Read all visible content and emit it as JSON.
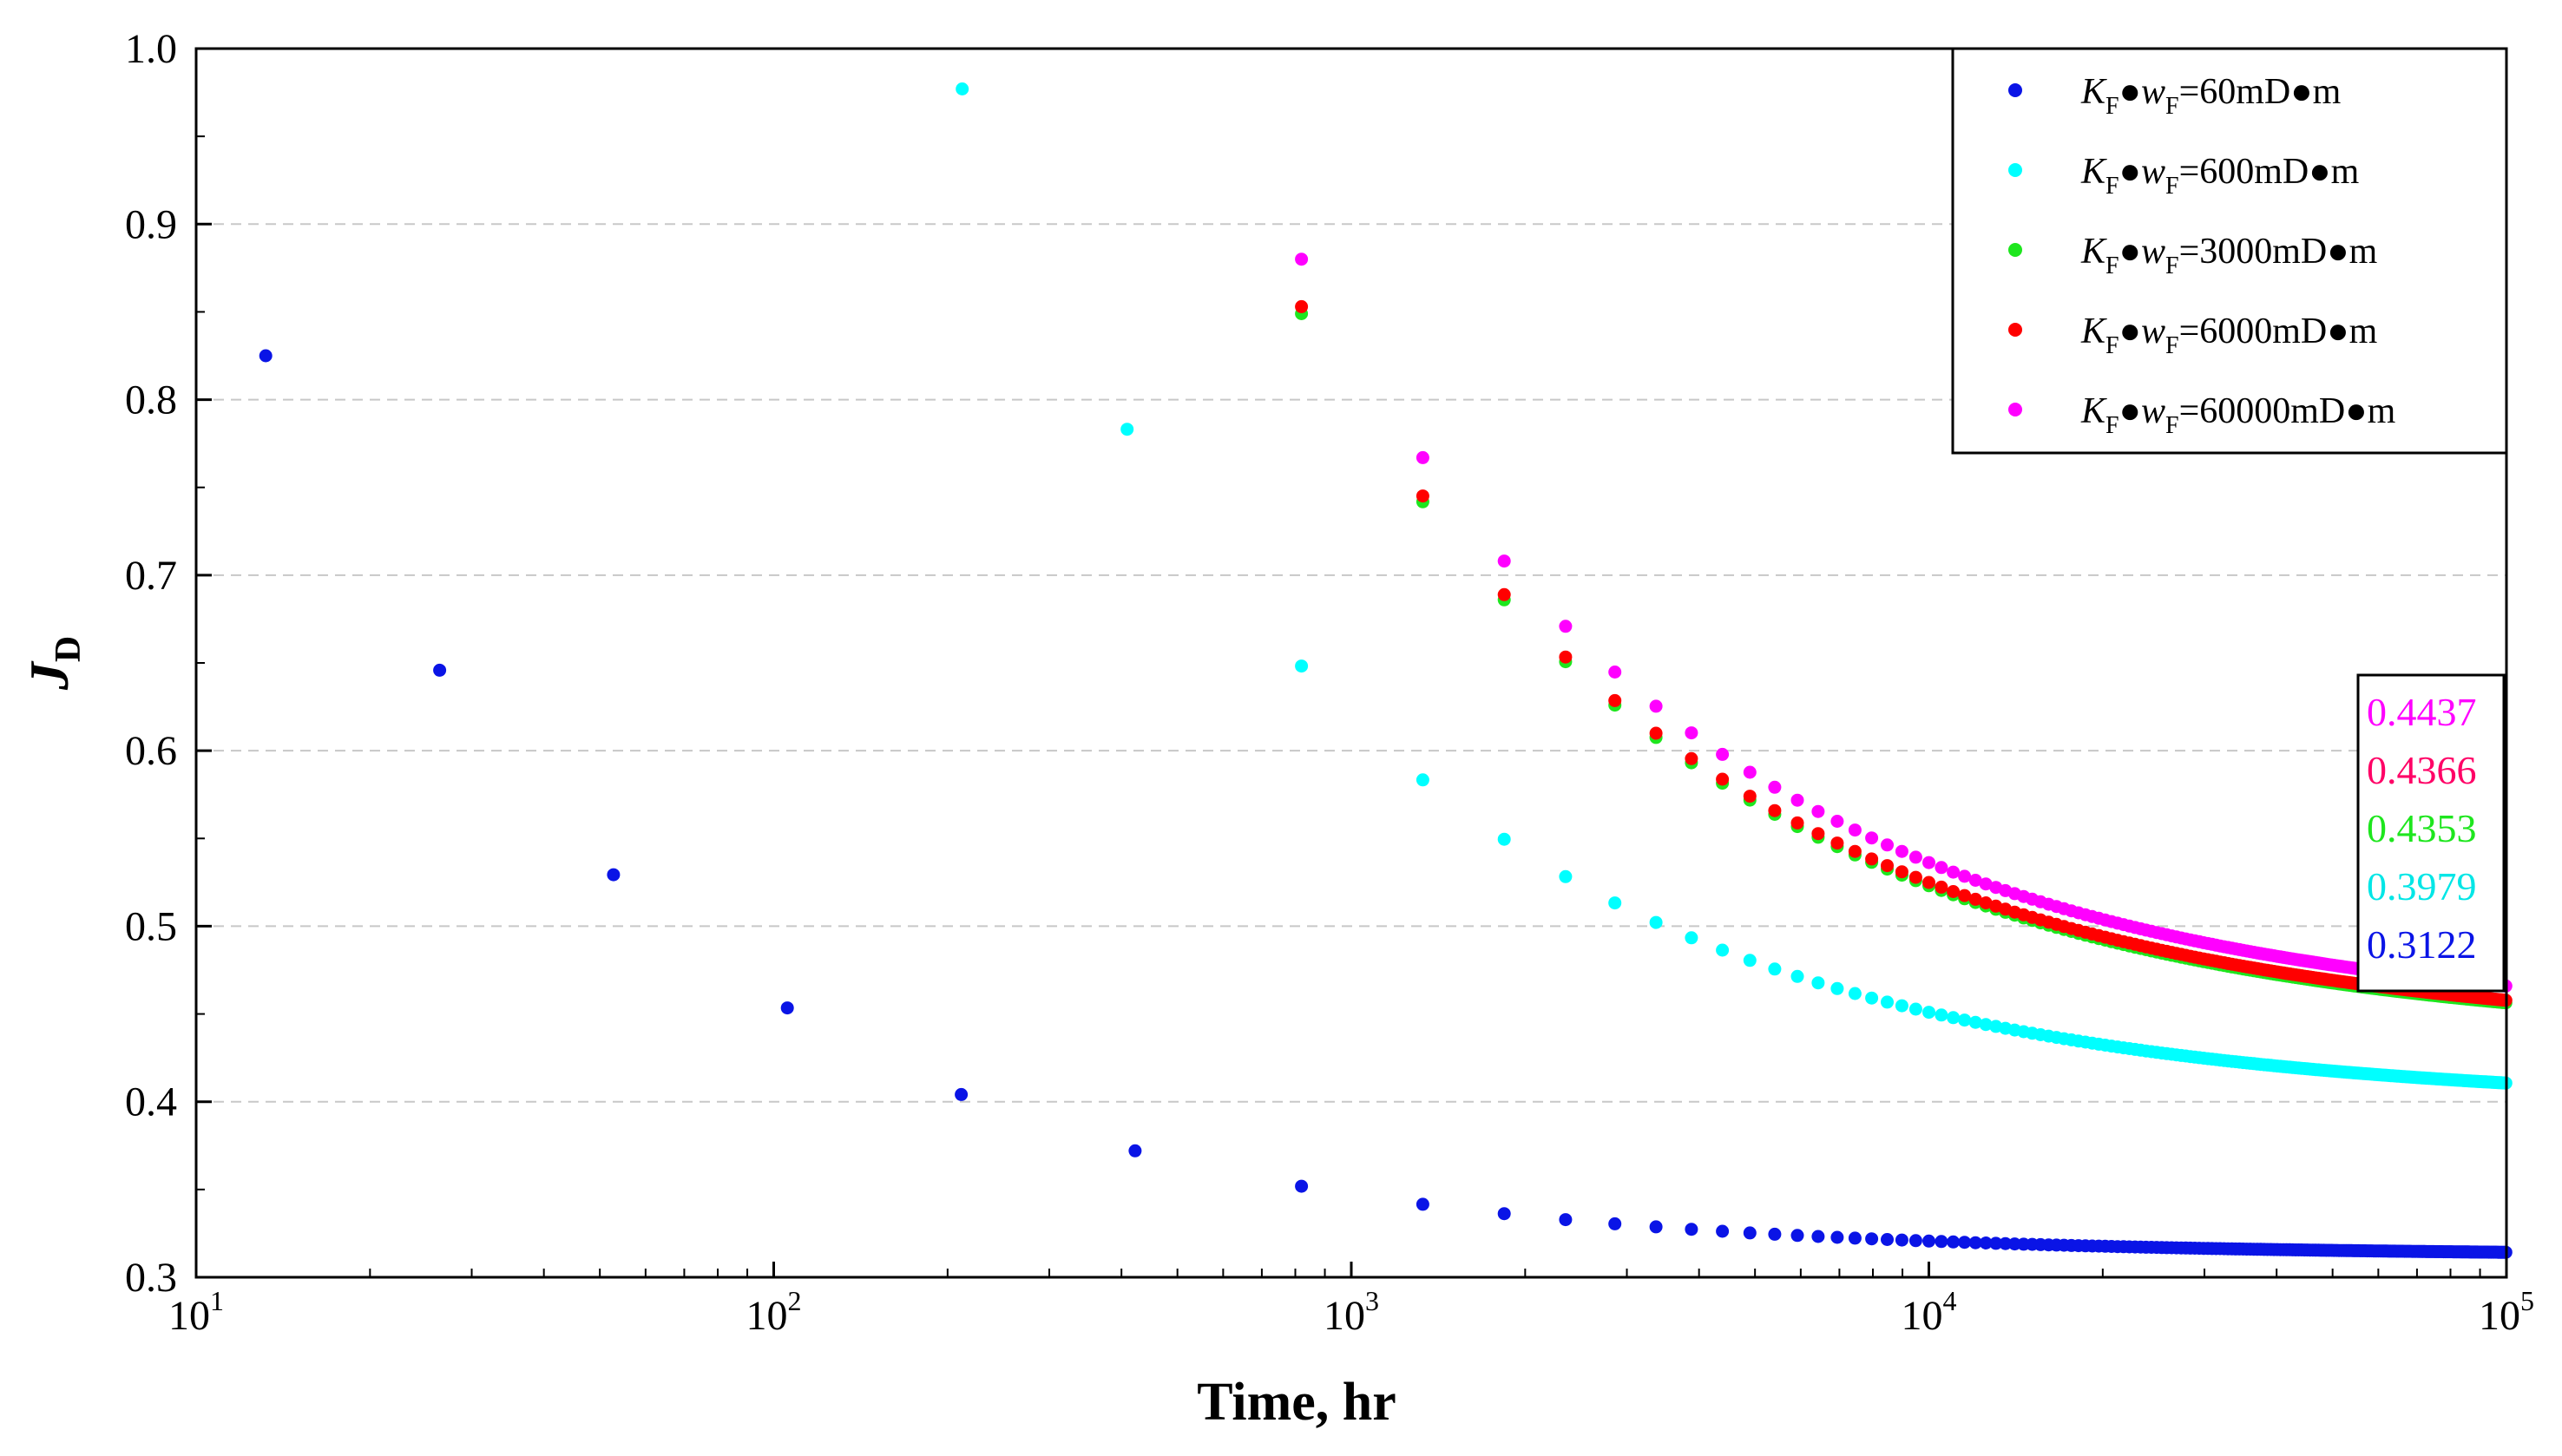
{
  "chart_data": {
    "type": "scatter",
    "title": "",
    "xlabel": "Time,  hr",
    "ylabel_main": "J",
    "ylabel_sub": "D",
    "xscale": "log",
    "xlim": [
      10,
      100000
    ],
    "ylim": [
      0.3,
      1.0
    ],
    "grid": "horizontal-dashed",
    "legend_position": "top-right",
    "xticks": [
      {
        "base": "10",
        "exp": "1"
      },
      {
        "base": "10",
        "exp": "2"
      },
      {
        "base": "10",
        "exp": "3"
      },
      {
        "base": "10",
        "exp": "4"
      },
      {
        "base": "10",
        "exp": "5"
      }
    ],
    "yticks": [
      "0.3",
      "0.4",
      "0.5",
      "0.6",
      "0.7",
      "0.8",
      "0.9",
      "1.0"
    ],
    "legend_parts": {
      "k": "K",
      "ksub": "F",
      "w": "w",
      "wsub": "F",
      "bullet": "●"
    },
    "series": [
      {
        "name": "60mD●m",
        "color": "#0a14e6",
        "final_label": "0.3122",
        "start_x": 13.2,
        "start_y": 0.825,
        "final": 0.3122
      },
      {
        "name": "600mD●m",
        "color": "#00ffff",
        "final_label": "0.3979",
        "start_x": 212,
        "start_y": 0.977,
        "final": 0.3979
      },
      {
        "name": "3000mD●m",
        "color": "#1ee61e",
        "final_label": "0.4353",
        "start_x": 820,
        "start_y": 0.849,
        "final": 0.4353
      },
      {
        "name": "6000mD●m",
        "color": "#ff0000",
        "final_label": "0.4366",
        "start_x": 820,
        "start_y": 0.853,
        "final": 0.4366
      },
      {
        "name": "60000mD●m",
        "color": "#ff00ff",
        "final_label": "0.4437",
        "start_x": 820,
        "start_y": 0.88,
        "final": 0.4437
      }
    ],
    "end_label_colors": [
      "#ff00ff",
      "#ff0066",
      "#1ee61e",
      "#00e6e6",
      "#0a14e6"
    ]
  }
}
